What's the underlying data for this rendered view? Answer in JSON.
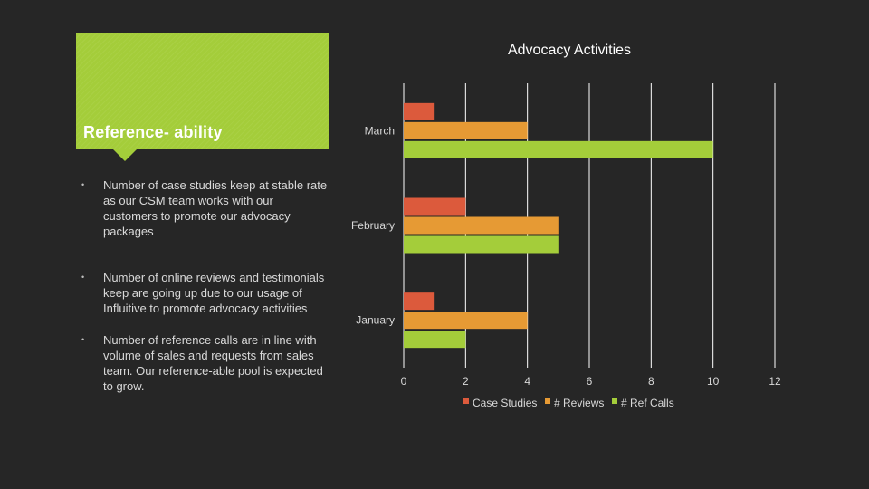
{
  "slide": {
    "title": "Reference- ability",
    "bullets": [
      "Number of case studies keep at stable rate as  our CSM team works with our customers to promote our advocacy packages",
      "Number of online reviews and testimonials keep are going up due to our usage of Influitive to promote advocacy activities",
      "Number of reference calls are in line with volume of sales and requests from sales team. Our reference-able pool is expected to grow."
    ],
    "bullet_glyph": "•"
  },
  "colors": {
    "background": "#262626",
    "accent_green": "#a4cd3a",
    "case_studies": "#dc5a3c",
    "reviews": "#e69a34",
    "ref_calls": "#a4cd3a",
    "gridline": "#ffffff",
    "text": "#d9d9d9"
  },
  "chart_data": {
    "type": "bar",
    "orientation": "horizontal",
    "title": "Advocacy Activities",
    "categories": [
      "January",
      "February",
      "March"
    ],
    "series": [
      {
        "name": "Case Studies",
        "values": [
          1,
          2,
          1
        ]
      },
      {
        "name": "# Reviews",
        "values": [
          4,
          5,
          4
        ]
      },
      {
        "name": "# Ref Calls",
        "values": [
          2,
          5,
          10
        ]
      }
    ],
    "xlim": [
      0,
      12
    ],
    "xticks": [
      0,
      2,
      4,
      6,
      8,
      10,
      12
    ],
    "grid": true,
    "legend": "bottom"
  }
}
